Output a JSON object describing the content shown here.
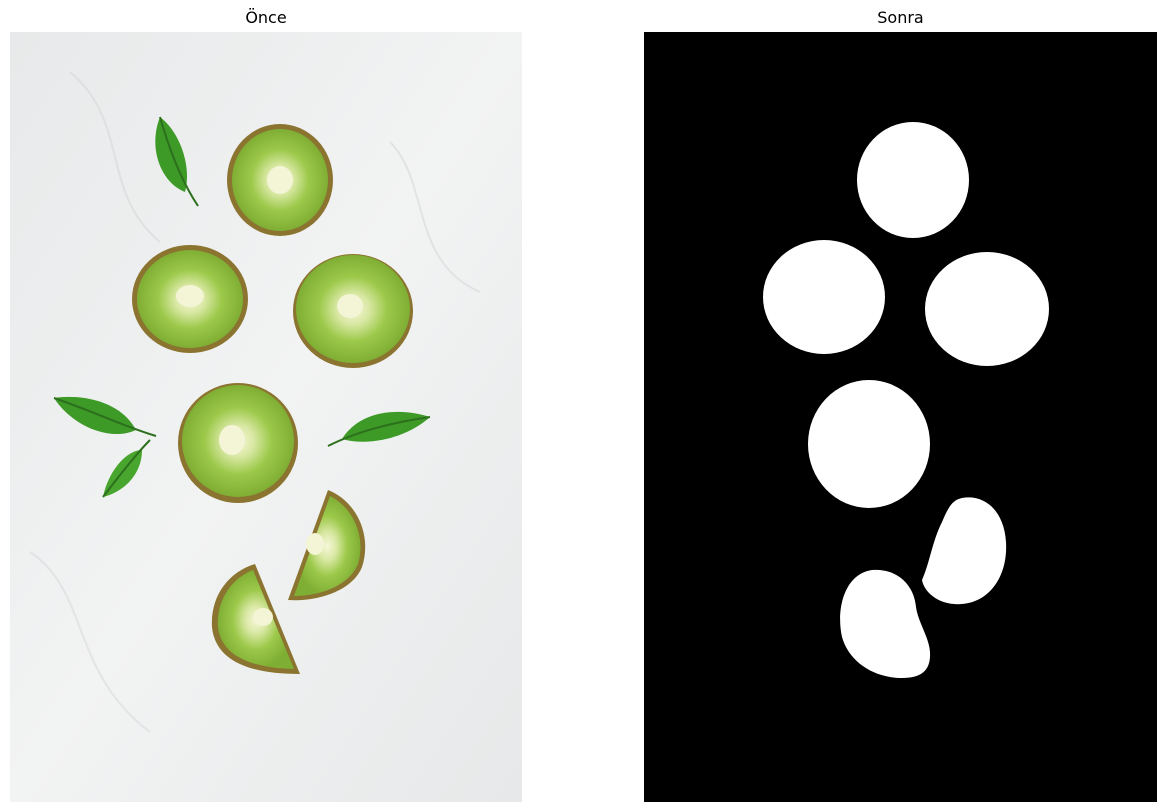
{
  "panels": {
    "before": {
      "title": "Önce",
      "image": "kiwi-slices-with-leaves-on-white-marble-photo"
    },
    "after": {
      "title": "Sonra",
      "image": "binary-segmentation-mask-of-kiwi-slices"
    }
  },
  "colors": {
    "marble": "#eceeee",
    "kiwi_skin": "#7a6a2a",
    "kiwi_flesh": "#8fbf3a",
    "kiwi_core": "#f3f3d2",
    "leaf": "#3d9a27",
    "mask_background": "#000000",
    "mask_foreground": "#ffffff"
  }
}
